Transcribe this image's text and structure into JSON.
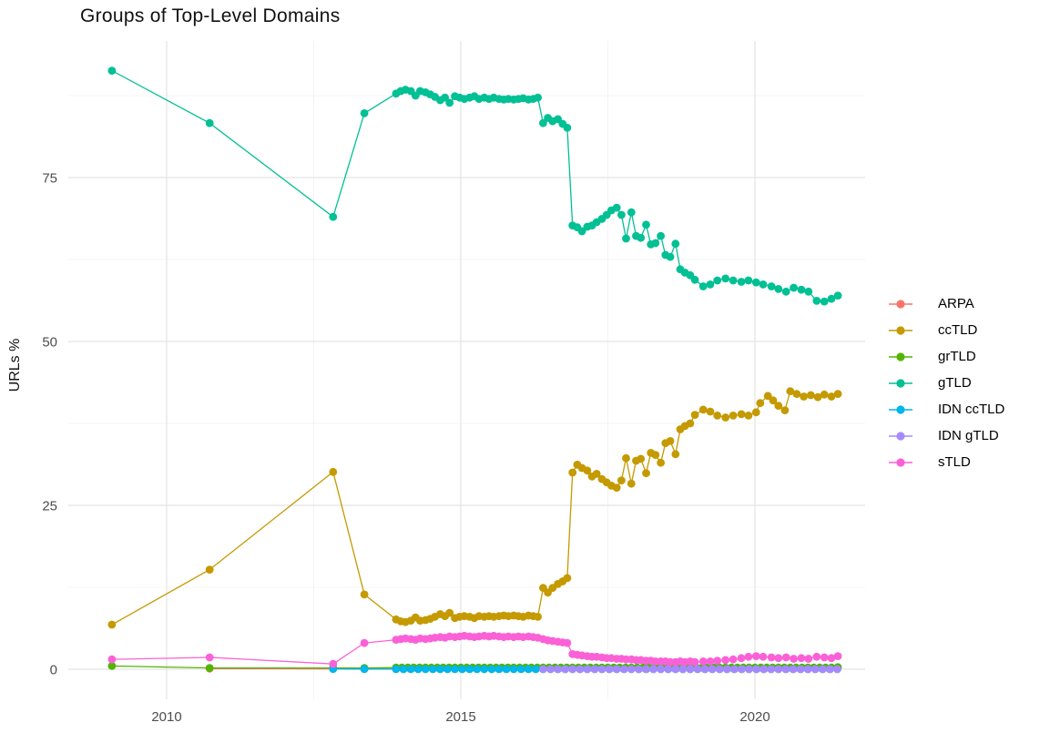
{
  "chart_data": {
    "type": "line",
    "title": "Groups of Top-Level Domains",
    "xlabel": "",
    "ylabel": "URLs %",
    "legend_position": "right",
    "grid": "major+minor",
    "axis_text_color": "#4d4d4d",
    "gridline_major_color": "#e4e4e4",
    "gridline_minor_color": "#f0f0f0",
    "xlim": [
      2008.33,
      2021.87
    ],
    "ylim": [
      -5,
      95.5
    ],
    "x_ticks": [
      2010,
      2015,
      2020
    ],
    "x_minor_ticks": [
      2012.5,
      2017.5
    ],
    "y_ticks": [
      0,
      25,
      50,
      75
    ],
    "y_minor_ticks": [
      12.5,
      37.5,
      62.5,
      87.5
    ],
    "series": [
      {
        "name": "ARPA",
        "color": "#F8766D",
        "points": [
          [
            2010.73,
            0.1
          ],
          [
            2012.83,
            0.05
          ],
          [
            2013.36,
            0.05
          ]
        ],
        "flat": {
          "start": 2013.9,
          "end": 2021.41,
          "step": 0.125,
          "value": 0.05
        }
      },
      {
        "name": "ccTLD",
        "color": "#C49A00",
        "points": [
          [
            2009.07,
            6.8
          ],
          [
            2010.73,
            15.2
          ],
          [
            2012.83,
            30.1
          ],
          [
            2013.36,
            11.4
          ],
          [
            2013.9,
            7.6
          ],
          [
            2013.98,
            7.3
          ],
          [
            2014.06,
            7.2
          ],
          [
            2014.15,
            7.4
          ],
          [
            2014.23,
            7.9
          ],
          [
            2014.31,
            7.4
          ],
          [
            2014.4,
            7.5
          ],
          [
            2014.48,
            7.7
          ],
          [
            2014.56,
            8.0
          ],
          [
            2014.65,
            8.4
          ],
          [
            2014.73,
            8.1
          ],
          [
            2014.81,
            8.6
          ],
          [
            2014.9,
            7.8
          ],
          [
            2014.98,
            8.0
          ],
          [
            2015.06,
            8.1
          ],
          [
            2015.15,
            8.0
          ],
          [
            2015.23,
            7.8
          ],
          [
            2015.31,
            8.1
          ],
          [
            2015.4,
            8.0
          ],
          [
            2015.48,
            8.1
          ],
          [
            2015.56,
            8.0
          ],
          [
            2015.65,
            8.1
          ],
          [
            2015.73,
            8.2
          ],
          [
            2015.81,
            8.1
          ],
          [
            2015.9,
            8.2
          ],
          [
            2015.98,
            8.1
          ],
          [
            2016.06,
            8.0
          ],
          [
            2016.15,
            8.2
          ],
          [
            2016.23,
            8.1
          ],
          [
            2016.31,
            8.0
          ],
          [
            2016.4,
            12.4
          ],
          [
            2016.48,
            11.7
          ],
          [
            2016.56,
            12.4
          ],
          [
            2016.65,
            13.0
          ],
          [
            2016.73,
            13.4
          ],
          [
            2016.81,
            13.9
          ],
          [
            2016.9,
            30.0
          ],
          [
            2016.98,
            31.2
          ],
          [
            2017.06,
            30.7
          ],
          [
            2017.15,
            30.3
          ],
          [
            2017.23,
            29.4
          ],
          [
            2017.31,
            29.8
          ],
          [
            2017.4,
            29.0
          ],
          [
            2017.48,
            28.5
          ],
          [
            2017.56,
            28.0
          ],
          [
            2017.65,
            27.7
          ],
          [
            2017.73,
            28.8
          ],
          [
            2017.81,
            32.2
          ],
          [
            2017.9,
            28.3
          ],
          [
            2017.98,
            31.8
          ],
          [
            2018.06,
            32.1
          ],
          [
            2018.15,
            29.9
          ],
          [
            2018.23,
            33.0
          ],
          [
            2018.31,
            32.7
          ],
          [
            2018.4,
            31.5
          ],
          [
            2018.48,
            34.5
          ],
          [
            2018.56,
            34.8
          ],
          [
            2018.65,
            32.8
          ],
          [
            2018.73,
            36.6
          ],
          [
            2018.81,
            37.1
          ],
          [
            2018.9,
            37.5
          ],
          [
            2018.98,
            38.8
          ],
          [
            2019.12,
            39.6
          ],
          [
            2019.24,
            39.3
          ],
          [
            2019.36,
            38.7
          ],
          [
            2019.5,
            38.4
          ],
          [
            2019.63,
            38.7
          ],
          [
            2019.77,
            38.9
          ],
          [
            2019.89,
            38.7
          ],
          [
            2020.02,
            39.2
          ],
          [
            2020.09,
            40.6
          ],
          [
            2020.22,
            41.7
          ],
          [
            2020.31,
            41.0
          ],
          [
            2020.4,
            40.2
          ],
          [
            2020.51,
            39.5
          ],
          [
            2020.6,
            42.4
          ],
          [
            2020.71,
            42.0
          ],
          [
            2020.83,
            41.6
          ],
          [
            2020.95,
            41.8
          ],
          [
            2021.07,
            41.5
          ],
          [
            2021.18,
            41.9
          ],
          [
            2021.3,
            41.6
          ],
          [
            2021.41,
            42.0
          ]
        ]
      },
      {
        "name": "grTLD",
        "color": "#53B400",
        "points": [
          [
            2009.07,
            0.5
          ],
          [
            2010.73,
            0.2
          ],
          [
            2012.83,
            0.2
          ],
          [
            2013.36,
            0.2
          ],
          [
            2021.41,
            0.3
          ]
        ],
        "flat": {
          "start": 2013.9,
          "end": 2021.41,
          "step": 0.1,
          "value": 0.25
        }
      },
      {
        "name": "gTLD",
        "color": "#00C094",
        "points": [
          [
            2009.07,
            91.3
          ],
          [
            2010.73,
            83.3
          ],
          [
            2012.83,
            69.0
          ],
          [
            2013.36,
            84.8
          ],
          [
            2013.9,
            87.8
          ],
          [
            2013.98,
            88.2
          ],
          [
            2014.06,
            88.4
          ],
          [
            2014.15,
            88.2
          ],
          [
            2014.23,
            87.5
          ],
          [
            2014.31,
            88.2
          ],
          [
            2014.4,
            88.0
          ],
          [
            2014.48,
            87.7
          ],
          [
            2014.56,
            87.3
          ],
          [
            2014.65,
            86.8
          ],
          [
            2014.73,
            87.2
          ],
          [
            2014.81,
            86.4
          ],
          [
            2014.9,
            87.4
          ],
          [
            2014.98,
            87.2
          ],
          [
            2015.06,
            87.0
          ],
          [
            2015.15,
            87.2
          ],
          [
            2015.23,
            87.4
          ],
          [
            2015.31,
            87.0
          ],
          [
            2015.4,
            87.2
          ],
          [
            2015.48,
            87.0
          ],
          [
            2015.56,
            87.2
          ],
          [
            2015.65,
            87.0
          ],
          [
            2015.73,
            86.9
          ],
          [
            2015.81,
            87.0
          ],
          [
            2015.9,
            86.9
          ],
          [
            2015.98,
            87.0
          ],
          [
            2016.06,
            87.1
          ],
          [
            2016.15,
            86.9
          ],
          [
            2016.23,
            87.0
          ],
          [
            2016.31,
            87.2
          ],
          [
            2016.4,
            83.3
          ],
          [
            2016.48,
            84.1
          ],
          [
            2016.56,
            83.6
          ],
          [
            2016.65,
            83.9
          ],
          [
            2016.73,
            83.2
          ],
          [
            2016.81,
            82.6
          ],
          [
            2016.9,
            67.7
          ],
          [
            2016.98,
            67.4
          ],
          [
            2017.06,
            66.8
          ],
          [
            2017.15,
            67.5
          ],
          [
            2017.23,
            67.7
          ],
          [
            2017.31,
            68.2
          ],
          [
            2017.4,
            68.7
          ],
          [
            2017.48,
            69.3
          ],
          [
            2017.56,
            70.0
          ],
          [
            2017.65,
            70.4
          ],
          [
            2017.73,
            69.3
          ],
          [
            2017.81,
            65.7
          ],
          [
            2017.9,
            69.7
          ],
          [
            2017.98,
            66.1
          ],
          [
            2018.06,
            65.8
          ],
          [
            2018.15,
            67.8
          ],
          [
            2018.23,
            64.8
          ],
          [
            2018.31,
            65.0
          ],
          [
            2018.4,
            66.1
          ],
          [
            2018.48,
            63.2
          ],
          [
            2018.56,
            62.9
          ],
          [
            2018.65,
            64.9
          ],
          [
            2018.73,
            61.0
          ],
          [
            2018.81,
            60.5
          ],
          [
            2018.9,
            60.1
          ],
          [
            2018.98,
            59.4
          ],
          [
            2019.12,
            58.4
          ],
          [
            2019.24,
            58.7
          ],
          [
            2019.36,
            59.3
          ],
          [
            2019.5,
            59.6
          ],
          [
            2019.63,
            59.3
          ],
          [
            2019.77,
            59.1
          ],
          [
            2019.89,
            59.3
          ],
          [
            2020.02,
            59.0
          ],
          [
            2020.14,
            58.7
          ],
          [
            2020.28,
            58.4
          ],
          [
            2020.4,
            58.0
          ],
          [
            2020.53,
            57.6
          ],
          [
            2020.66,
            58.2
          ],
          [
            2020.79,
            57.9
          ],
          [
            2020.91,
            57.6
          ],
          [
            2021.05,
            56.2
          ],
          [
            2021.18,
            56.1
          ],
          [
            2021.3,
            56.5
          ],
          [
            2021.41,
            57.0
          ]
        ]
      },
      {
        "name": "IDN ccTLD",
        "color": "#00B6EB",
        "points": [
          [
            2012.83,
            0.05
          ],
          [
            2013.36,
            0.03
          ]
        ],
        "flat": {
          "start": 2013.9,
          "end": 2021.41,
          "step": 0.125,
          "value": 0.02
        }
      },
      {
        "name": "IDN gTLD",
        "color": "#A58AFF",
        "points": [],
        "flat": {
          "start": 2016.4,
          "end": 2021.41,
          "step": 0.125,
          "value": 0.02
        }
      },
      {
        "name": "sTLD",
        "color": "#FB61D7",
        "points": [
          [
            2009.07,
            1.5
          ],
          [
            2010.73,
            1.8
          ],
          [
            2012.83,
            0.8
          ],
          [
            2013.36,
            4.0
          ],
          [
            2013.9,
            4.5
          ],
          [
            2013.98,
            4.6
          ],
          [
            2014.06,
            4.7
          ],
          [
            2014.15,
            4.6
          ],
          [
            2014.23,
            4.5
          ],
          [
            2014.31,
            4.7
          ],
          [
            2014.4,
            4.6
          ],
          [
            2014.48,
            4.7
          ],
          [
            2014.56,
            4.8
          ],
          [
            2014.65,
            4.9
          ],
          [
            2014.73,
            4.8
          ],
          [
            2014.81,
            5.0
          ],
          [
            2014.9,
            4.9
          ],
          [
            2014.98,
            5.0
          ],
          [
            2015.06,
            5.1
          ],
          [
            2015.15,
            5.0
          ],
          [
            2015.23,
            4.9
          ],
          [
            2015.31,
            5.0
          ],
          [
            2015.4,
            5.1
          ],
          [
            2015.48,
            5.0
          ],
          [
            2015.56,
            5.1
          ],
          [
            2015.65,
            5.0
          ],
          [
            2015.73,
            4.9
          ],
          [
            2015.81,
            5.0
          ],
          [
            2015.9,
            4.9
          ],
          [
            2015.98,
            5.0
          ],
          [
            2016.06,
            4.9
          ],
          [
            2016.15,
            5.0
          ],
          [
            2016.23,
            4.9
          ],
          [
            2016.31,
            4.8
          ],
          [
            2016.4,
            4.6
          ],
          [
            2016.48,
            4.4
          ],
          [
            2016.56,
            4.3
          ],
          [
            2016.65,
            4.2
          ],
          [
            2016.73,
            4.1
          ],
          [
            2016.81,
            4.0
          ],
          [
            2016.9,
            2.3
          ],
          [
            2016.98,
            2.2
          ],
          [
            2017.06,
            2.1
          ],
          [
            2017.15,
            2.0
          ],
          [
            2017.23,
            1.9
          ],
          [
            2017.31,
            1.9
          ],
          [
            2017.4,
            1.8
          ],
          [
            2017.48,
            1.7
          ],
          [
            2017.56,
            1.7
          ],
          [
            2017.65,
            1.6
          ],
          [
            2017.73,
            1.6
          ],
          [
            2017.81,
            1.5
          ],
          [
            2017.9,
            1.5
          ],
          [
            2017.98,
            1.4
          ],
          [
            2018.06,
            1.4
          ],
          [
            2018.15,
            1.3
          ],
          [
            2018.23,
            1.3
          ],
          [
            2018.31,
            1.2
          ],
          [
            2018.4,
            1.2
          ],
          [
            2018.48,
            1.2
          ],
          [
            2018.56,
            1.1
          ],
          [
            2018.65,
            1.1
          ],
          [
            2018.73,
            1.2
          ],
          [
            2018.81,
            1.1
          ],
          [
            2018.9,
            1.2
          ],
          [
            2018.98,
            1.1
          ],
          [
            2019.12,
            1.2
          ],
          [
            2019.24,
            1.2
          ],
          [
            2019.36,
            1.3
          ],
          [
            2019.5,
            1.4
          ],
          [
            2019.63,
            1.5
          ],
          [
            2019.77,
            1.7
          ],
          [
            2019.89,
            1.9
          ],
          [
            2020.02,
            2.0
          ],
          [
            2020.14,
            1.9
          ],
          [
            2020.28,
            1.8
          ],
          [
            2020.4,
            1.7
          ],
          [
            2020.53,
            1.8
          ],
          [
            2020.66,
            1.6
          ],
          [
            2020.79,
            1.7
          ],
          [
            2020.91,
            1.6
          ],
          [
            2021.05,
            1.9
          ],
          [
            2021.18,
            1.8
          ],
          [
            2021.3,
            1.7
          ],
          [
            2021.41,
            2.0
          ]
        ]
      }
    ]
  }
}
